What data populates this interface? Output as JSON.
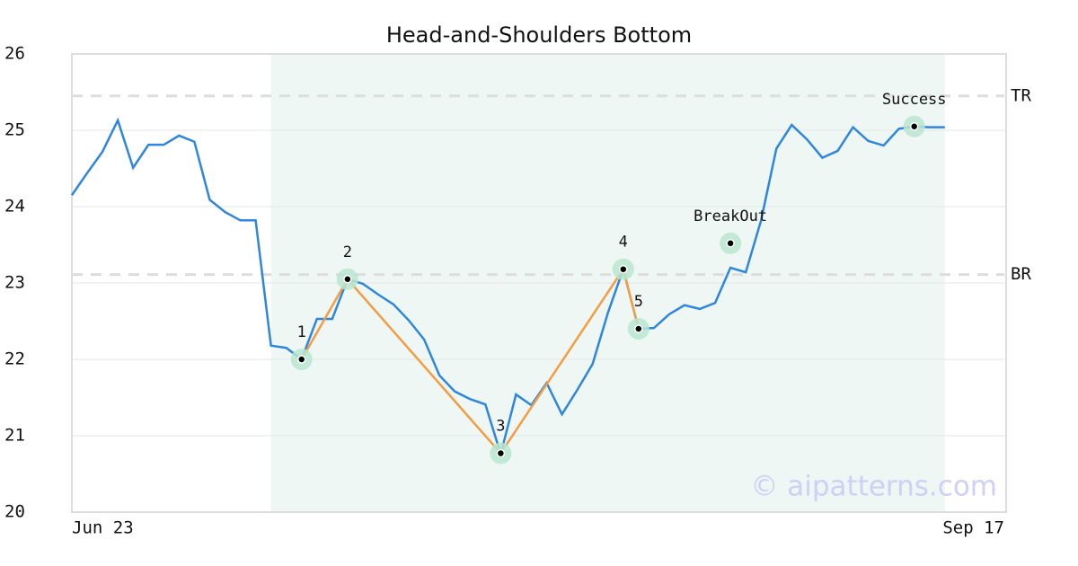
{
  "chart_data": {
    "type": "line",
    "title": "Head-and-Shoulders Bottom",
    "x": [
      0,
      1,
      2,
      3,
      4,
      5,
      6,
      7,
      8,
      9,
      10,
      11,
      12,
      13,
      14,
      15,
      16,
      17,
      18,
      19,
      20,
      21,
      22,
      23,
      24,
      25,
      26,
      27,
      28,
      29,
      30,
      31,
      32,
      33,
      34,
      35,
      36,
      37,
      38,
      39,
      40,
      41,
      42,
      43,
      44,
      45,
      46,
      47,
      48,
      49,
      50,
      51,
      52,
      53,
      54,
      55,
      56,
      57
    ],
    "values": [
      24.15,
      24.44,
      24.72,
      25.13,
      24.51,
      24.81,
      24.81,
      24.93,
      24.85,
      24.09,
      23.93,
      23.82,
      23.82,
      22.18,
      22.15,
      22.0,
      22.53,
      22.53,
      23.05,
      22.99,
      22.85,
      22.72,
      22.51,
      22.26,
      21.79,
      21.58,
      21.48,
      21.41,
      20.76,
      21.54,
      21.4,
      21.69,
      21.28,
      21.6,
      21.94,
      22.61,
      23.18,
      22.4,
      22.41,
      22.59,
      22.71,
      22.66,
      22.74,
      23.2,
      23.14,
      23.82,
      24.76,
      25.07,
      24.88,
      24.64,
      24.73,
      25.04,
      24.86,
      24.8,
      25.02,
      25.05,
      25.04,
      25.04
    ],
    "color": "#2e86de",
    "xlim": [
      0,
      61
    ],
    "xticks": [
      {
        "value": 0,
        "label": "Jun 23"
      },
      {
        "value": 61,
        "label": "Sep 17"
      }
    ],
    "ylim": [
      20,
      26
    ],
    "yticks": [
      20,
      21,
      22,
      23,
      24,
      25,
      26
    ],
    "grid": true,
    "highlight_range": [
      13,
      57
    ],
    "levels": [
      {
        "label": "TR",
        "value": 25.45
      },
      {
        "label": "BR",
        "value": 23.11
      }
    ],
    "pattern": {
      "color": "#f39c44",
      "points": [
        {
          "label": "1",
          "x": 15,
          "y": 22.0
        },
        {
          "label": "2",
          "x": 18,
          "y": 23.05
        },
        {
          "label": "3",
          "x": 28,
          "y": 20.77
        },
        {
          "label": "4",
          "x": 36,
          "y": 23.18
        },
        {
          "label": "5",
          "x": 37,
          "y": 22.4
        }
      ]
    },
    "markers": [
      {
        "label": "BreakOut",
        "x": 43,
        "y": 23.52
      },
      {
        "label": "Success",
        "x": 55,
        "y": 25.05
      }
    ],
    "watermark": "© aipatterns.com"
  }
}
